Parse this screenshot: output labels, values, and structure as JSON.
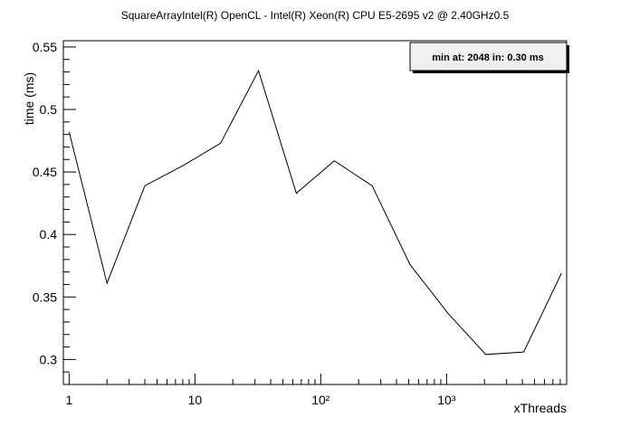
{
  "chart_data": {
    "type": "line",
    "title": "SquareArrayIntel(R) OpenCL -       Intel(R) Xeon(R) CPU E5-2695 v2 @ 2.40GHz0.5",
    "xlabel": "xThreads",
    "ylabel": "time (ms)",
    "x_scale": "log",
    "xlim": [
      0.9,
      9000
    ],
    "ylim": [
      0.28,
      0.555
    ],
    "grid": false,
    "x_ticks": [
      {
        "value": 1,
        "label": "1"
      },
      {
        "value": 10,
        "label": "10"
      },
      {
        "value": 100,
        "label": "10²"
      },
      {
        "value": 1000,
        "label": "10³"
      }
    ],
    "y_ticks": [
      {
        "value": 0.3,
        "label": "0.3"
      },
      {
        "value": 0.35,
        "label": "0.35"
      },
      {
        "value": 0.4,
        "label": "0.4"
      },
      {
        "value": 0.45,
        "label": "0.45"
      },
      {
        "value": 0.5,
        "label": "0.5"
      },
      {
        "value": 0.55,
        "label": "0.55"
      }
    ],
    "series": [
      {
        "x": [
          1,
          2,
          4,
          8,
          16,
          32,
          64,
          128,
          256,
          512,
          1024,
          2048,
          4096,
          8192
        ],
        "y": [
          0.482,
          0.361,
          0.439,
          0.455,
          0.473,
          0.531,
          0.433,
          0.459,
          0.439,
          0.376,
          0.337,
          0.304,
          0.306,
          0.369
        ]
      }
    ],
    "stats_box": {
      "text": "min at: 2048 in: 0.30 ms",
      "placement": "top-right"
    }
  }
}
